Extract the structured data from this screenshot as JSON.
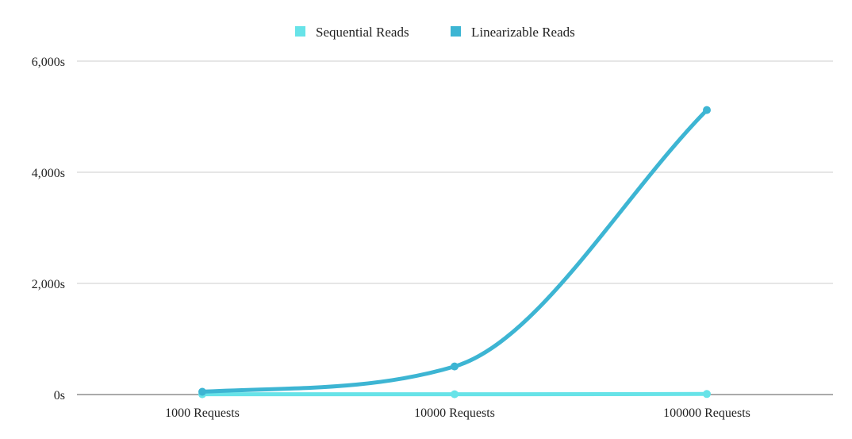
{
  "chart_data": {
    "type": "line",
    "title": "",
    "xlabel": "",
    "ylabel": "",
    "categories": [
      "1000 Requests",
      "10000 Requests",
      "100000 Requests"
    ],
    "series": [
      {
        "name": "Sequential Reads",
        "color": "#67e3e8",
        "values": [
          5,
          5,
          10
        ]
      },
      {
        "name": "Linearizable Reads",
        "color": "#3db5d3",
        "values": [
          50,
          505,
          5120
        ]
      }
    ],
    "ylim": [
      0,
      6000
    ],
    "yticks": [
      0,
      2000,
      4000,
      6000
    ],
    "ytick_labels": [
      "0s",
      "2,000s",
      "4,000s",
      "6,000s"
    ],
    "grid": true,
    "legend_position": "top-center"
  }
}
